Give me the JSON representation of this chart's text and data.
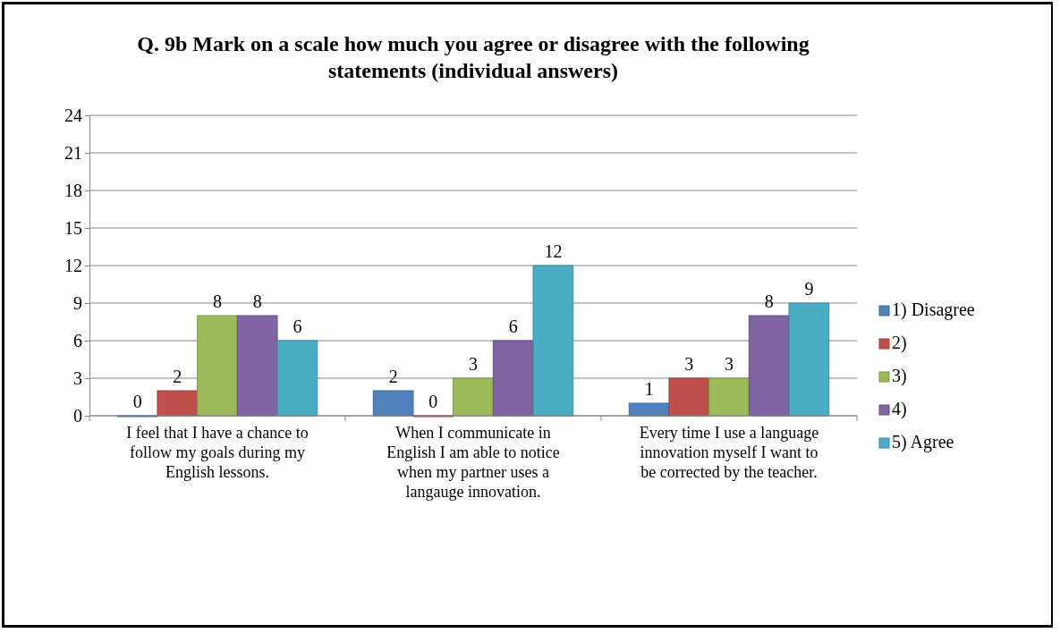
{
  "chart_data": {
    "type": "bar",
    "title": "Q. 9b Mark on a scale how much you agree or disagree with the following statements (individual answers)",
    "categories": [
      "I feel that I have a chance to follow my goals during my English lessons.",
      "When I communicate in English I am able to notice when my partner uses a langauge innovation.",
      "Every time I use a language innovation myself I want to be corrected by the teacher."
    ],
    "series": [
      {
        "name": "1) Disagree",
        "color": "#4f81bd",
        "values": [
          0,
          2,
          1
        ]
      },
      {
        "name": "2)",
        "color": "#c0504d",
        "values": [
          2,
          0,
          3
        ]
      },
      {
        "name": "3)",
        "color": "#9bbb59",
        "values": [
          8,
          3,
          3
        ]
      },
      {
        "name": "4)",
        "color": "#8064a2",
        "values": [
          8,
          6,
          8
        ]
      },
      {
        "name": "5) Agree",
        "color": "#4bacc6",
        "values": [
          6,
          12,
          9
        ]
      }
    ],
    "ylim": [
      0,
      24
    ],
    "yticks": [
      0,
      3,
      6,
      9,
      12,
      15,
      18,
      21,
      24
    ],
    "grid": "y",
    "legend": "right",
    "data_labels": true
  }
}
